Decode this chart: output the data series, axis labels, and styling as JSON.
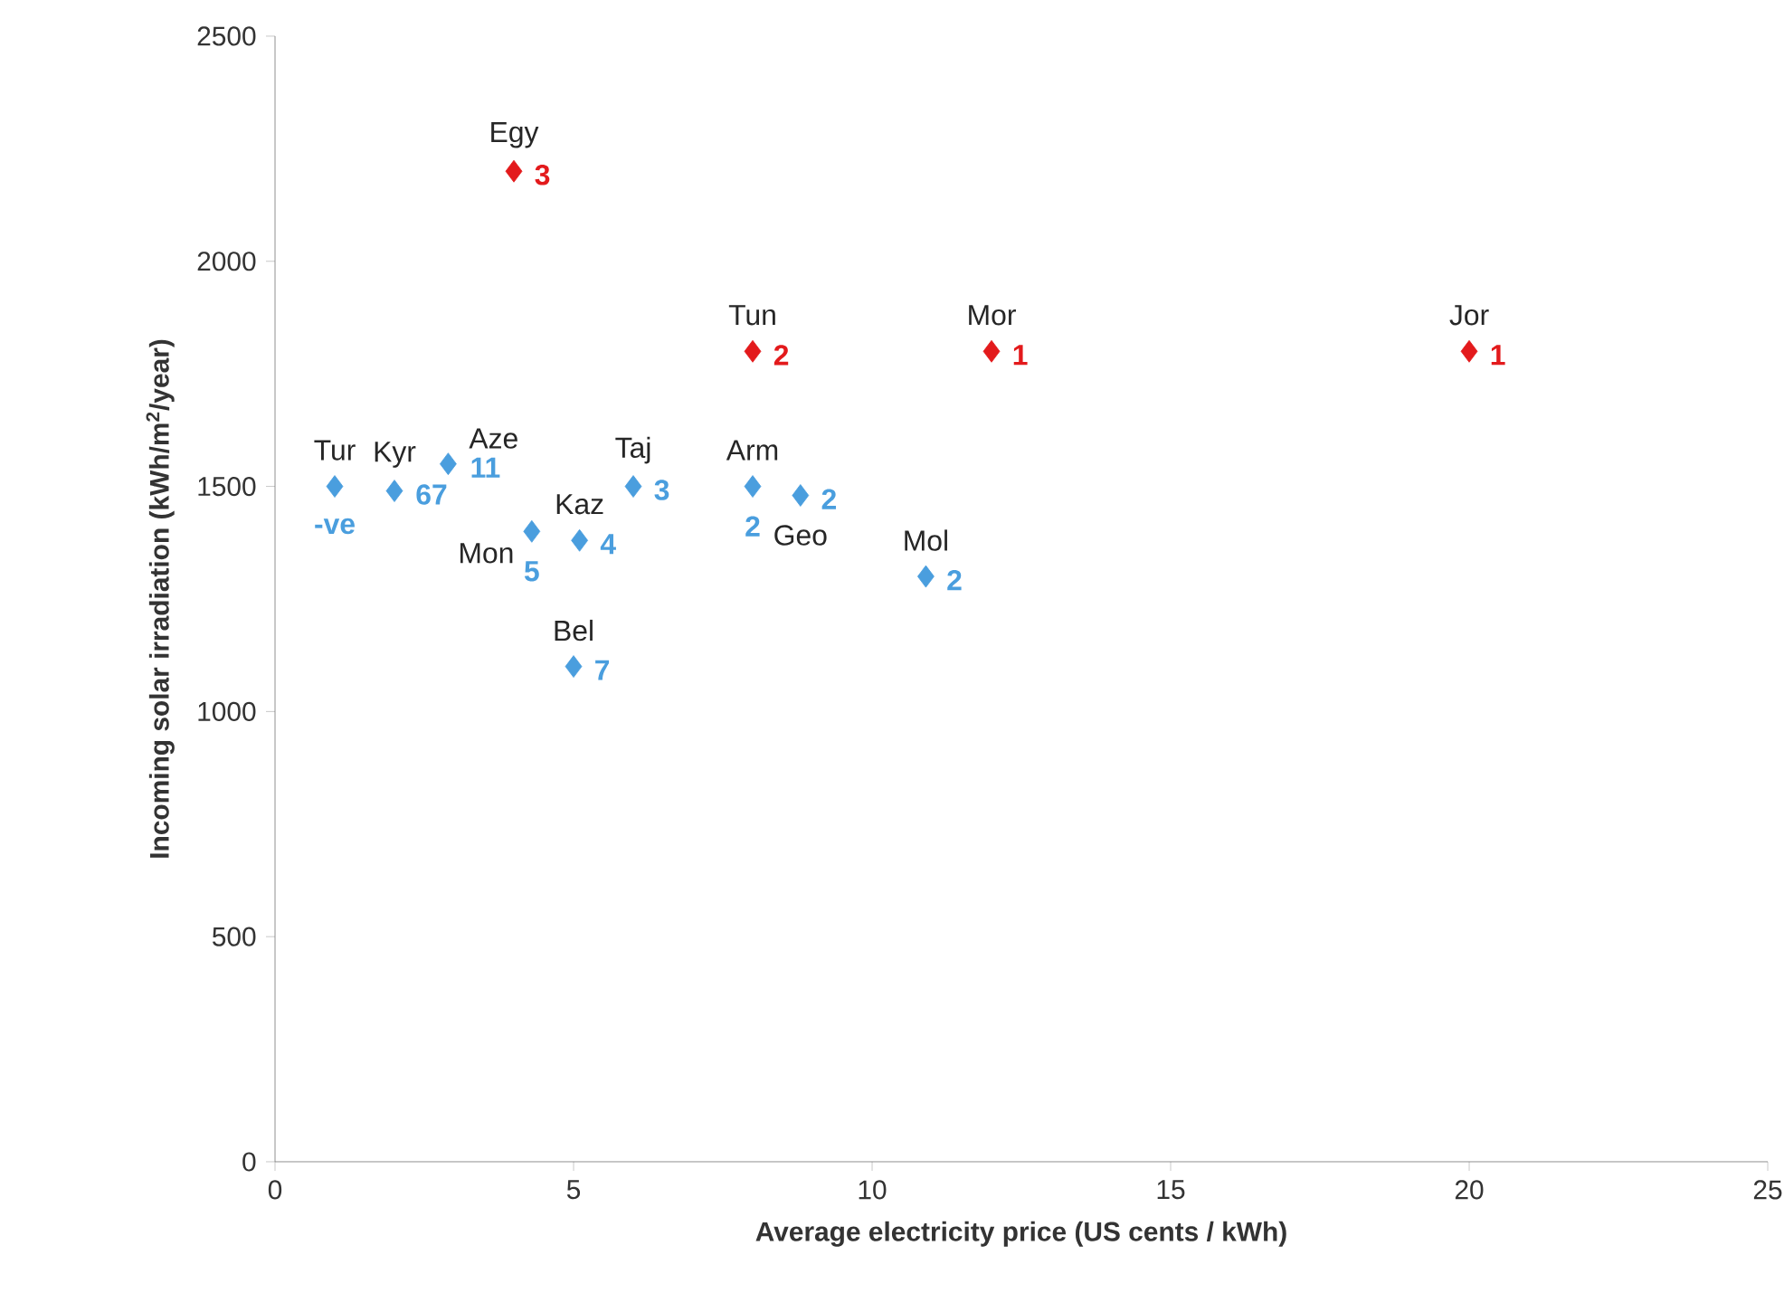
{
  "chart_data": {
    "type": "scatter",
    "xlabel": "Average electricity price (US cents / kWh)",
    "ylabel": "Incoming solar irradiation (kWh/m$^{2}$/year)",
    "xlim": [
      0,
      25
    ],
    "ylim": [
      0,
      2500
    ],
    "xticks": [
      0,
      5,
      10,
      15,
      20,
      25
    ],
    "yticks": [
      0,
      500,
      1000,
      1500,
      2000,
      2500
    ],
    "marker": "diamond",
    "series": [
      {
        "color": "#e31a1c",
        "x": [
          4,
          8,
          12,
          20
        ],
        "values": [
          2200,
          1800,
          1800,
          1800
        ]
      },
      {
        "color": "#4a9ede",
        "x": [
          1,
          2,
          2.9,
          4.3,
          5.1,
          6,
          8,
          8.8,
          10.9,
          5
        ],
        "values": [
          1500,
          1490,
          1550,
          1400,
          1380,
          1500,
          1500,
          1480,
          1300,
          1100
        ]
      }
    ],
    "annotations": [
      {
        "text": "Egy",
        "x": 4,
        "y": 2200
      },
      {
        "text": "3",
        "x": 4,
        "y": 2200
      },
      {
        "text": "Tun",
        "x": 8,
        "y": 1800
      },
      {
        "text": "2",
        "x": 8,
        "y": 1800
      },
      {
        "text": "Mor",
        "x": 12,
        "y": 1800
      },
      {
        "text": "1",
        "x": 12,
        "y": 1800
      },
      {
        "text": "Jor",
        "x": 20,
        "y": 1800
      },
      {
        "text": "1",
        "x": 20,
        "y": 1800
      },
      {
        "text": "Tur",
        "x": 1,
        "y": 1500
      },
      {
        "text": "-ve",
        "x": 1,
        "y": 1500
      },
      {
        "text": "Kyr",
        "x": 2,
        "y": 1490
      },
      {
        "text": "67",
        "x": 2,
        "y": 1490
      },
      {
        "text": "Aze",
        "x": 2.9,
        "y": 1550
      },
      {
        "text": "11",
        "x": 2.9,
        "y": 1550
      },
      {
        "text": "Mon",
        "x": 4.3,
        "y": 1400
      },
      {
        "text": "5",
        "x": 4.3,
        "y": 1400
      },
      {
        "text": "Kaz",
        "x": 5.1,
        "y": 1380
      },
      {
        "text": "4",
        "x": 5.1,
        "y": 1380
      },
      {
        "text": "Taj",
        "x": 6,
        "y": 1500
      },
      {
        "text": "3",
        "x": 6,
        "y": 1500
      },
      {
        "text": "Arm",
        "x": 8,
        "y": 1500
      },
      {
        "text": "2",
        "x": 8,
        "y": 1500
      },
      {
        "text": "Geo",
        "x": 8.8,
        "y": 1480
      },
      {
        "text": "2",
        "x": 8.8,
        "y": 1480
      },
      {
        "text": "Mol",
        "x": 10.9,
        "y": 1300
      },
      {
        "text": "2",
        "x": 10.9,
        "y": 1300
      },
      {
        "text": "Bel",
        "x": 5,
        "y": 1100
      },
      {
        "text": "7",
        "x": 5,
        "y": 1100
      }
    ]
  }
}
